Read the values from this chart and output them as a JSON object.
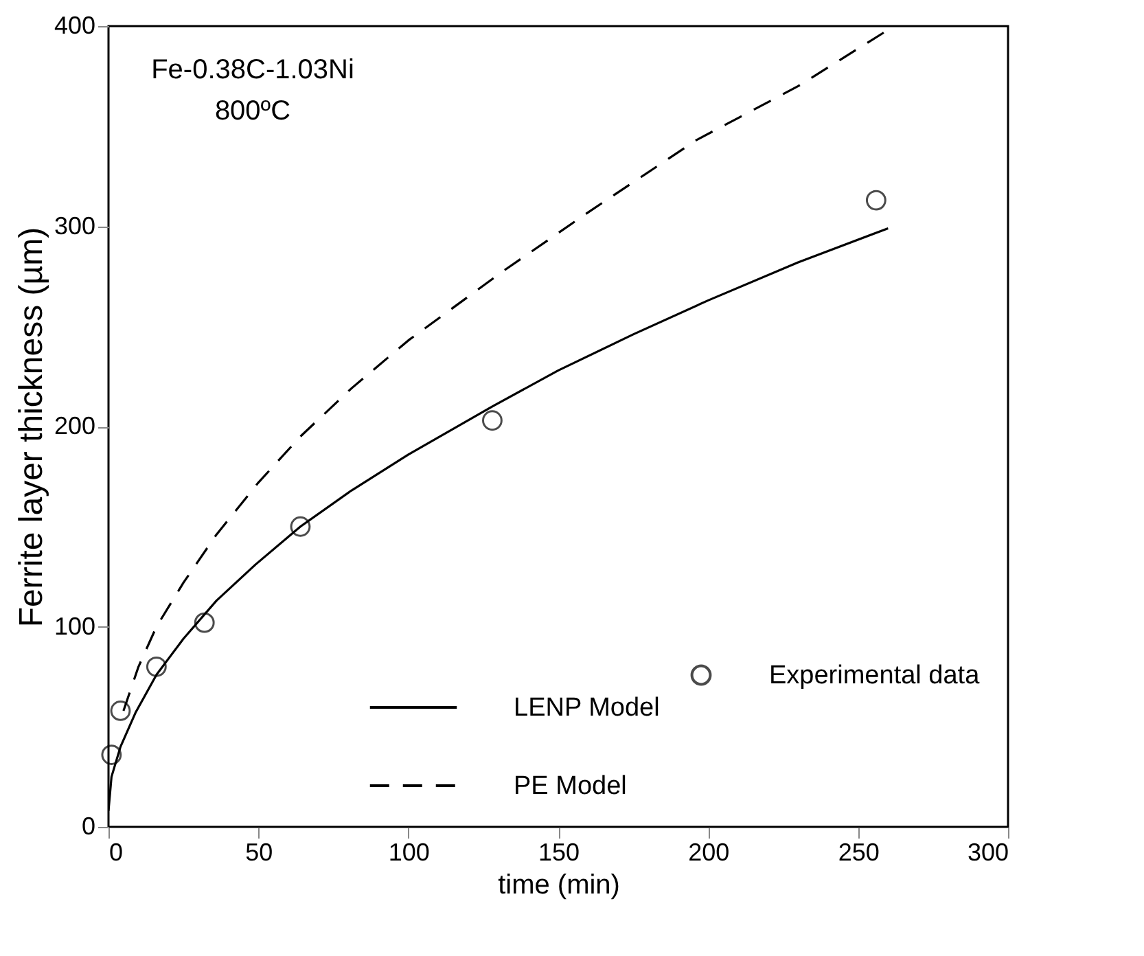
{
  "chart_data": {
    "type": "line",
    "xlabel": "time (min)",
    "ylabel": "Ferrite layer thickness (µm)",
    "annotations": [
      "Fe-0.38C-1.03Ni",
      "800ºC"
    ],
    "xlim": [
      0,
      300
    ],
    "xticks": [
      0,
      50,
      100,
      150,
      200,
      250,
      300
    ],
    "ylim": [
      0,
      400
    ],
    "yticks": [
      0,
      100,
      200,
      300,
      400
    ],
    "grid": false,
    "legend": "bottom right",
    "series": [
      {
        "name": "LENP Model",
        "line_style": "solid",
        "color": "#000000",
        "x": [
          0,
          1,
          4,
          9,
          16,
          25,
          36,
          49,
          64,
          81,
          100,
          128,
          150,
          175,
          200,
          230,
          260
        ],
        "values": [
          8,
          25,
          40,
          57,
          76,
          94,
          113,
          131,
          150,
          168,
          186,
          210,
          228,
          246,
          263,
          282,
          299
        ]
      },
      {
        "name": "PE Model",
        "line_style": "dashed",
        "color": "#000000",
        "x": [
          5,
          10,
          16,
          25,
          36,
          50,
          64,
          81,
          100,
          132,
          160,
          196,
          230,
          262
        ],
        "values": [
          58,
          80,
          100,
          122,
          146,
          172,
          195,
          219,
          243,
          278,
          307,
          343,
          370,
          400
        ]
      },
      {
        "name": "Experimental data",
        "type": "scatter",
        "marker": "circle",
        "color": "#000000",
        "x": [
          1,
          4,
          16,
          32,
          64,
          128,
          256
        ],
        "values": [
          36,
          58,
          80,
          102,
          150,
          203,
          313
        ]
      }
    ]
  }
}
